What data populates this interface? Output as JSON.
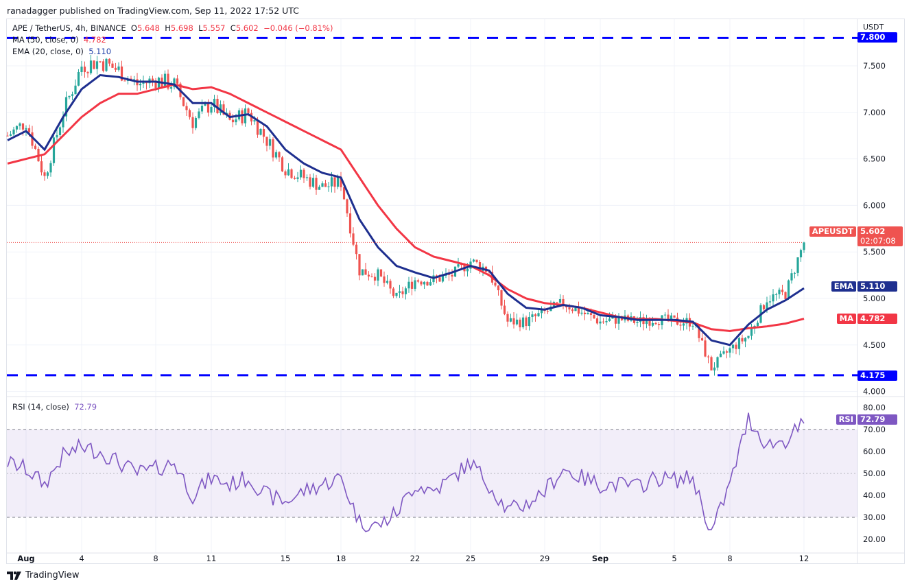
{
  "header": {
    "published": "ranadagger published on TradingView.com, Sep 11, 2022 17:52 UTC"
  },
  "legend": {
    "symbol": "APE / TetherUS, 4h, BINANCE",
    "o_label": "O",
    "o": "5.648",
    "h_label": "H",
    "h": "5.698",
    "l_label": "L",
    "l": "5.557",
    "c_label": "C",
    "c": "5.602",
    "change": "−0.046 (−0.81%)",
    "ma_label": "MA (50, close, 0)",
    "ma_value": "4.782",
    "ema_label": "EMA (20, close, 0)",
    "ema_value": "5.110",
    "rsi_label": "RSI (14, close)",
    "rsi_value": "72.79"
  },
  "axis": {
    "currency": "USDT",
    "price_ticks": [
      "7.500",
      "7.000",
      "6.500",
      "6.000",
      "5.500",
      "5.000",
      "4.500",
      "4.000"
    ],
    "rsi_ticks": [
      "80.00",
      "70.00",
      "60.00",
      "50.00",
      "40.00",
      "30.00",
      "20.00"
    ],
    "time_ticks": [
      {
        "label": "Aug",
        "day": 1
      },
      {
        "label": "4",
        "day": 4
      },
      {
        "label": "8",
        "day": 8
      },
      {
        "label": "11",
        "day": 11
      },
      {
        "label": "15",
        "day": 15
      },
      {
        "label": "18",
        "day": 18
      },
      {
        "label": "22",
        "day": 22
      },
      {
        "label": "25",
        "day": 25
      },
      {
        "label": "29",
        "day": 29
      },
      {
        "label": "Sep",
        "day": 32
      },
      {
        "label": "5",
        "day": 36
      },
      {
        "label": "8",
        "day": 39
      },
      {
        "label": "12",
        "day": 43
      }
    ]
  },
  "tags": {
    "symbol": "APEUSDT",
    "price": "5.602",
    "countdown": "02:07:08",
    "ema": "EMA",
    "ema_value": "5.110",
    "ma": "MA",
    "ma_value": "4.782",
    "resistance": "7.800",
    "support": "4.175",
    "rsi": "RSI",
    "rsi_value": "72.79"
  },
  "colors": {
    "up": "#26a69a",
    "down": "#ef5350",
    "ma": "#f23645",
    "ema": "#1e2f8f",
    "level": "#0000ff",
    "rsi": "#7e57c2"
  },
  "brand": "TradingView",
  "chart_data": {
    "type": "candlestick",
    "timeframe": "4h",
    "x_unit": "day (0 = Jul 31, 2022)",
    "ylim": [
      3.95,
      7.9
    ],
    "rsi_ylim": [
      17,
      85
    ],
    "levels": [
      7.8,
      4.175
    ],
    "rsi_bands": [
      70,
      30
    ],
    "close": [
      6.75,
      6.9,
      6.3,
      7.0,
      7.5,
      7.55,
      7.45,
      7.3,
      7.35,
      7.3,
      6.9,
      7.1,
      6.9,
      7.0,
      6.7,
      6.4,
      6.3,
      6.2,
      6.25,
      5.3,
      5.25,
      5.0,
      5.2,
      5.2,
      5.25,
      5.4,
      5.3,
      4.75,
      4.75,
      4.85,
      4.95,
      4.85,
      4.75,
      4.78,
      4.75,
      4.78,
      4.75,
      4.75,
      4.25,
      4.45,
      4.6,
      5.0,
      5.05,
      5.602
    ],
    "ema20": [
      6.7,
      6.8,
      6.6,
      6.95,
      7.25,
      7.4,
      7.38,
      7.33,
      7.33,
      7.3,
      7.1,
      7.1,
      6.95,
      6.98,
      6.85,
      6.6,
      6.45,
      6.35,
      6.3,
      5.85,
      5.55,
      5.35,
      5.28,
      5.22,
      5.28,
      5.35,
      5.3,
      5.05,
      4.9,
      4.88,
      4.93,
      4.9,
      4.82,
      4.8,
      4.77,
      4.77,
      4.77,
      4.75,
      4.55,
      4.5,
      4.72,
      4.88,
      4.98,
      5.11
    ],
    "ma50": [
      6.45,
      6.5,
      6.55,
      6.75,
      6.95,
      7.1,
      7.2,
      7.2,
      7.25,
      7.3,
      7.25,
      7.27,
      7.2,
      7.1,
      7.0,
      6.9,
      6.8,
      6.7,
      6.6,
      6.3,
      6.0,
      5.75,
      5.55,
      5.45,
      5.4,
      5.35,
      5.25,
      5.1,
      5.0,
      4.95,
      4.93,
      4.9,
      4.85,
      4.8,
      4.78,
      4.78,
      4.76,
      4.74,
      4.67,
      4.65,
      4.68,
      4.7,
      4.73,
      4.782
    ],
    "rsi": [
      55,
      52,
      45,
      58,
      62,
      60,
      55,
      50,
      52,
      55,
      40,
      48,
      45,
      48,
      40,
      37,
      42,
      45,
      48,
      28,
      26,
      32,
      45,
      42,
      48,
      55,
      45,
      33,
      36,
      42,
      52,
      48,
      45,
      45,
      44,
      48,
      47,
      48,
      23,
      45,
      75,
      63,
      65,
      72.79
    ]
  }
}
